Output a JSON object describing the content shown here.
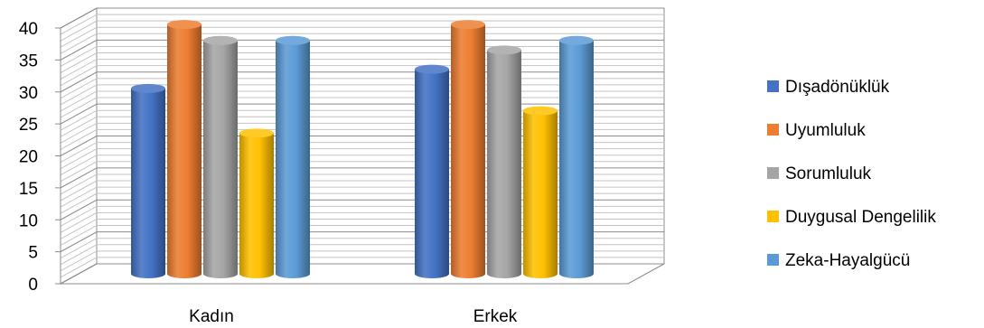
{
  "chart_data": {
    "type": "bar",
    "style": "3d-cylinder",
    "categories": [
      "Kadın",
      "Erkek"
    ],
    "series": [
      {
        "name": "Dışadönüklük",
        "values": [
          29,
          32
        ],
        "color": "#4472C4"
      },
      {
        "name": "Uyumluluk",
        "values": [
          39,
          39
        ],
        "color": "#ED7D31"
      },
      {
        "name": "Sorumluluk",
        "values": [
          36.5,
          35
        ],
        "color": "#A5A5A5"
      },
      {
        "name": "Duygusal Dengelilik",
        "values": [
          22,
          25.5
        ],
        "color": "#FFC000"
      },
      {
        "name": "Zeka-Hayalgücü",
        "values": [
          36.5,
          36.5
        ],
        "color": "#5B9BD5"
      }
    ],
    "ylim": [
      0,
      40
    ],
    "yticks": [
      "0",
      "5",
      "10",
      "15",
      "20",
      "25",
      "30",
      "35",
      "40"
    ],
    "grid": true,
    "legend_position": "right"
  }
}
